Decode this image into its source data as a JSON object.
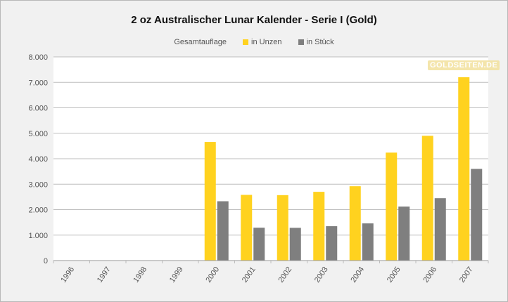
{
  "chart_data": {
    "type": "bar",
    "title": "2 oz Australischer Lunar Kalender - Serie I (Gold)",
    "legend_title": "Gesamtauflage",
    "legend_position": "top",
    "categories": [
      "1996",
      "1997",
      "1998",
      "1999",
      "2000",
      "2001",
      "2002",
      "2003",
      "2004",
      "2005",
      "2006",
      "2007"
    ],
    "series": [
      {
        "name": "in Unzen",
        "color": "#ffd21f",
        "values": [
          0,
          0,
          0,
          0,
          4660,
          2580,
          2570,
          2700,
          2920,
          4240,
          4900,
          7200
        ]
      },
      {
        "name": "in Stück",
        "color": "#7f7f7f",
        "values": [
          0,
          0,
          0,
          0,
          2330,
          1290,
          1285,
          1350,
          1460,
          2120,
          2450,
          3600
        ]
      }
    ],
    "ylim": [
      0,
      8000
    ],
    "yticks": [
      "0",
      "1.000",
      "2.000",
      "3.000",
      "4.000",
      "5.000",
      "6.000",
      "7.000",
      "8.000"
    ],
    "grid": true,
    "watermark": "GOLDSEITEN.DE"
  }
}
